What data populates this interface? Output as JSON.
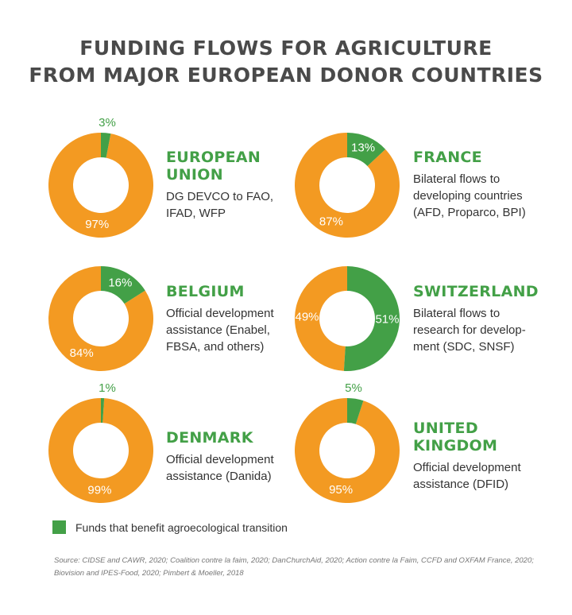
{
  "title": {
    "line1": "FUNDING FLOWS FOR AGRICULTURE",
    "line2": "FROM MAJOR EUROPEAN DONOR COUNTRIES"
  },
  "colors": {
    "agroecological": "#43a047",
    "other": "#f39a22"
  },
  "chart_data": [
    {
      "type": "pie",
      "title": "EUROPEAN UNION",
      "subtitle": "DG DEVCO to FAO, IFAD, WFP",
      "series": [
        {
          "label": "Funds that benefit agroecological transition",
          "value": 3,
          "display": "3%"
        },
        {
          "label": "",
          "value": 97,
          "display": "97%"
        }
      ]
    },
    {
      "type": "pie",
      "title": "FRANCE",
      "subtitle": "Bilateral flows to developing countries (AFD, Proparco, BPI)",
      "series": [
        {
          "label": "Funds that benefit agroecological transition",
          "value": 13,
          "display": "13%"
        },
        {
          "label": "",
          "value": 87,
          "display": "87%"
        }
      ]
    },
    {
      "type": "pie",
      "title": "BELGIUM",
      "subtitle": "Official development assistance (Enabel, FBSA, and others)",
      "series": [
        {
          "label": "Funds that benefit agroecological transition",
          "value": 16,
          "display": "16%"
        },
        {
          "label": "",
          "value": 84,
          "display": "84%"
        }
      ]
    },
    {
      "type": "pie",
      "title": "SWITZERLAND",
      "subtitle": "Bilateral flows to research for development (SDC, SNSF)",
      "series": [
        {
          "label": "Funds that benefit agroecological transition",
          "value": 51,
          "display": "51%"
        },
        {
          "label": "",
          "value": 49,
          "display": "49%"
        }
      ]
    },
    {
      "type": "pie",
      "title": "DENMARK",
      "subtitle": "Official development assistance (Danida)",
      "series": [
        {
          "label": "Funds that benefit agroecological transition",
          "value": 1,
          "display": "1%"
        },
        {
          "label": "",
          "value": 99,
          "display": "99%"
        }
      ]
    },
    {
      "type": "pie",
      "title": "UNITED KINGDOM",
      "subtitle": "Official development assistance (DFID)",
      "series": [
        {
          "label": "Funds that benefit agroecological transition",
          "value": 5,
          "display": "5%"
        },
        {
          "label": "",
          "value": 95,
          "display": "95%"
        }
      ]
    }
  ],
  "panels": [
    {
      "name_lines": [
        "EUROPEAN",
        "UNION"
      ],
      "desc_lines": [
        "DG DEVCO to FAO,",
        "IFAD, WFP"
      ]
    },
    {
      "name_lines": [
        "FRANCE"
      ],
      "desc_lines": [
        "Bilateral flows to",
        "developing countries",
        "(AFD, Proparco, BPI)"
      ]
    },
    {
      "name_lines": [
        "BELGIUM"
      ],
      "desc_lines": [
        "Official development",
        "assistance (Enabel,",
        "FBSA, and others)"
      ]
    },
    {
      "name_lines": [
        "SWITZERLAND"
      ],
      "desc_lines": [
        "Bilateral flows to",
        "research for develop-",
        "ment (SDC, SNSF)"
      ]
    },
    {
      "name_lines": [
        "DENMARK"
      ],
      "desc_lines": [
        "Official development",
        "assistance (Danida)"
      ]
    },
    {
      "name_lines": [
        "UNITED",
        "KINGDOM"
      ],
      "desc_lines": [
        "Official development",
        "assistance (DFID)"
      ]
    }
  ],
  "legend": {
    "label": "Funds that benefit agroecological transition"
  },
  "source": {
    "line1": "Source: CIDSE and CAWR, 2020; Coalition contre la faim, 2020; DanChurchAid, 2020; Action contre la Faim, CCFD and OXFAM France, 2020;",
    "line2": "Biovision and IPES-Food, 2020; Pimbert & Moeller, 2018"
  }
}
